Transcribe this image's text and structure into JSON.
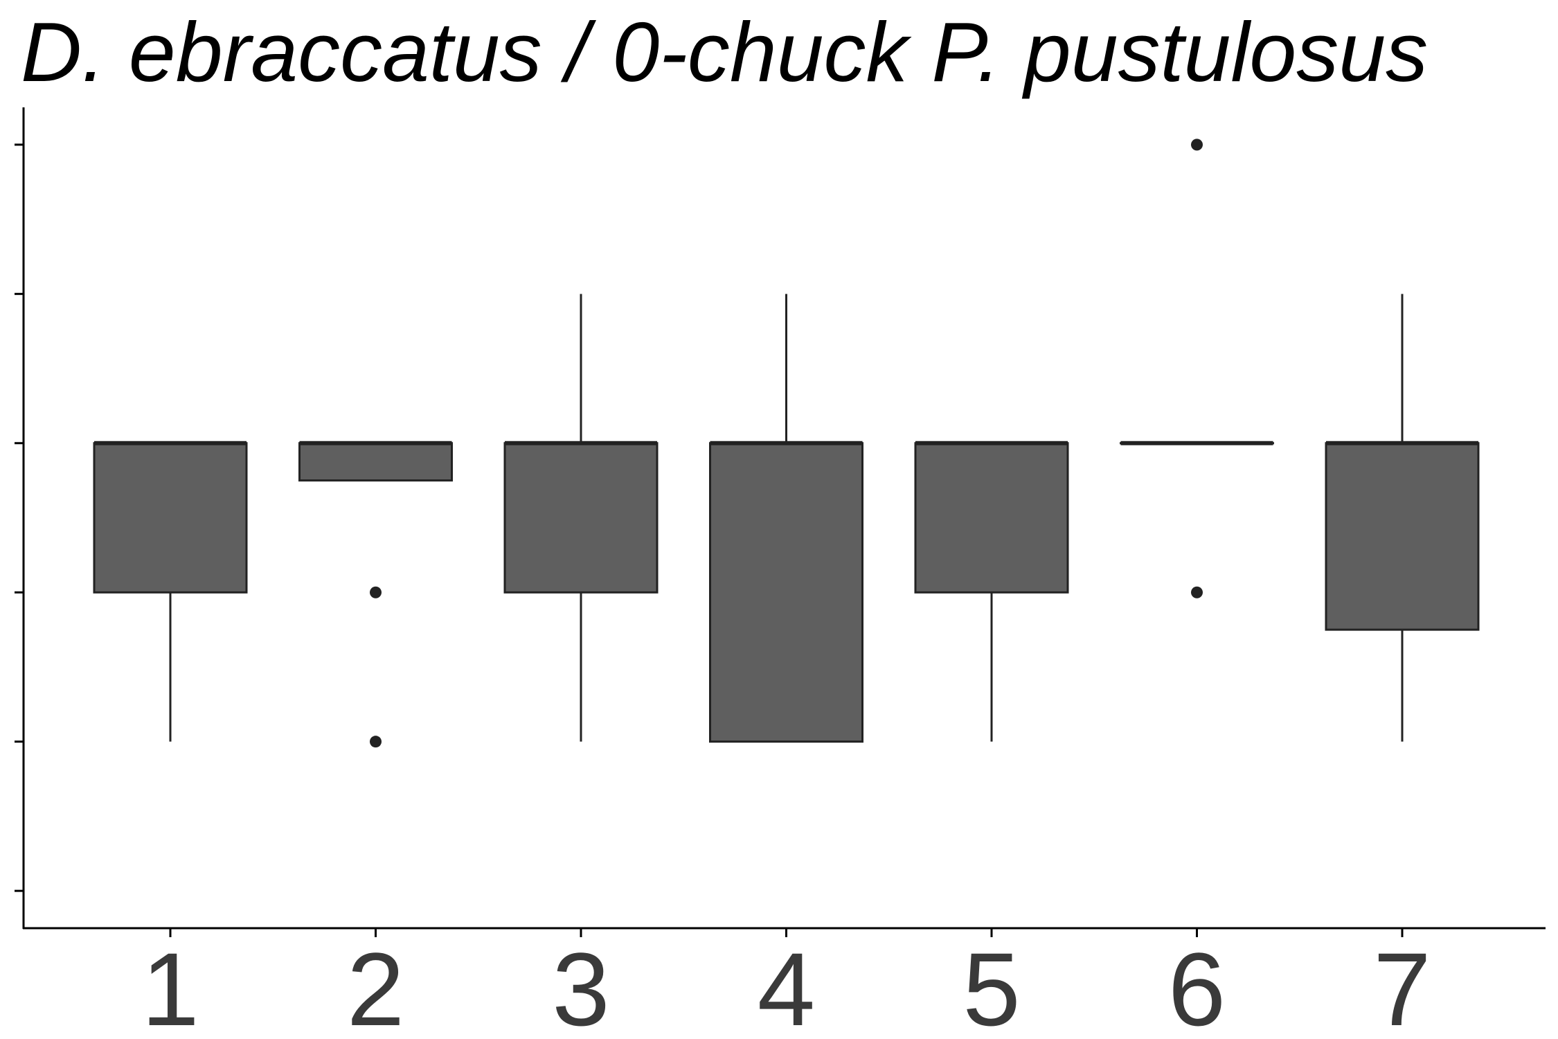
{
  "chart_data": {
    "type": "box",
    "title": "D. ebraccatus / 0-chuck P. pustulosus",
    "xlabel": "",
    "ylabel": "",
    "categories": [
      "1",
      "2",
      "3",
      "4",
      "5",
      "6",
      "7"
    ],
    "ylim": [
      -0.25,
      5.25
    ],
    "y_ticks": [
      0,
      1,
      2,
      3,
      4,
      5
    ],
    "y_tick_labels_shown": false,
    "grid": false,
    "legend": "none",
    "box_fill": "#5f5f5f",
    "line_color": "#222222",
    "boxes": [
      {
        "category": "1",
        "whisker_low": 1,
        "q1": 2,
        "median": 3,
        "q3": 3,
        "whisker_high": 3,
        "outliers": []
      },
      {
        "category": "2",
        "whisker_low": 2.75,
        "q1": 2.75,
        "median": 3,
        "q3": 3,
        "whisker_high": 3,
        "outliers": [
          2,
          1
        ]
      },
      {
        "category": "3",
        "whisker_low": 1,
        "q1": 2,
        "median": 3,
        "q3": 3,
        "whisker_high": 4,
        "outliers": []
      },
      {
        "category": "4",
        "whisker_low": 1,
        "q1": 1,
        "median": 3,
        "q3": 3,
        "whisker_high": 4,
        "outliers": []
      },
      {
        "category": "5",
        "whisker_low": 1,
        "q1": 2,
        "median": 3,
        "q3": 3,
        "whisker_high": 3,
        "outliers": []
      },
      {
        "category": "6",
        "whisker_low": 3,
        "q1": 3,
        "median": 3,
        "q3": 3,
        "whisker_high": 3,
        "outliers": [
          5,
          2
        ]
      },
      {
        "category": "7",
        "whisker_low": 1,
        "q1": 1.75,
        "median": 3,
        "q3": 3,
        "whisker_high": 4,
        "outliers": []
      }
    ]
  }
}
